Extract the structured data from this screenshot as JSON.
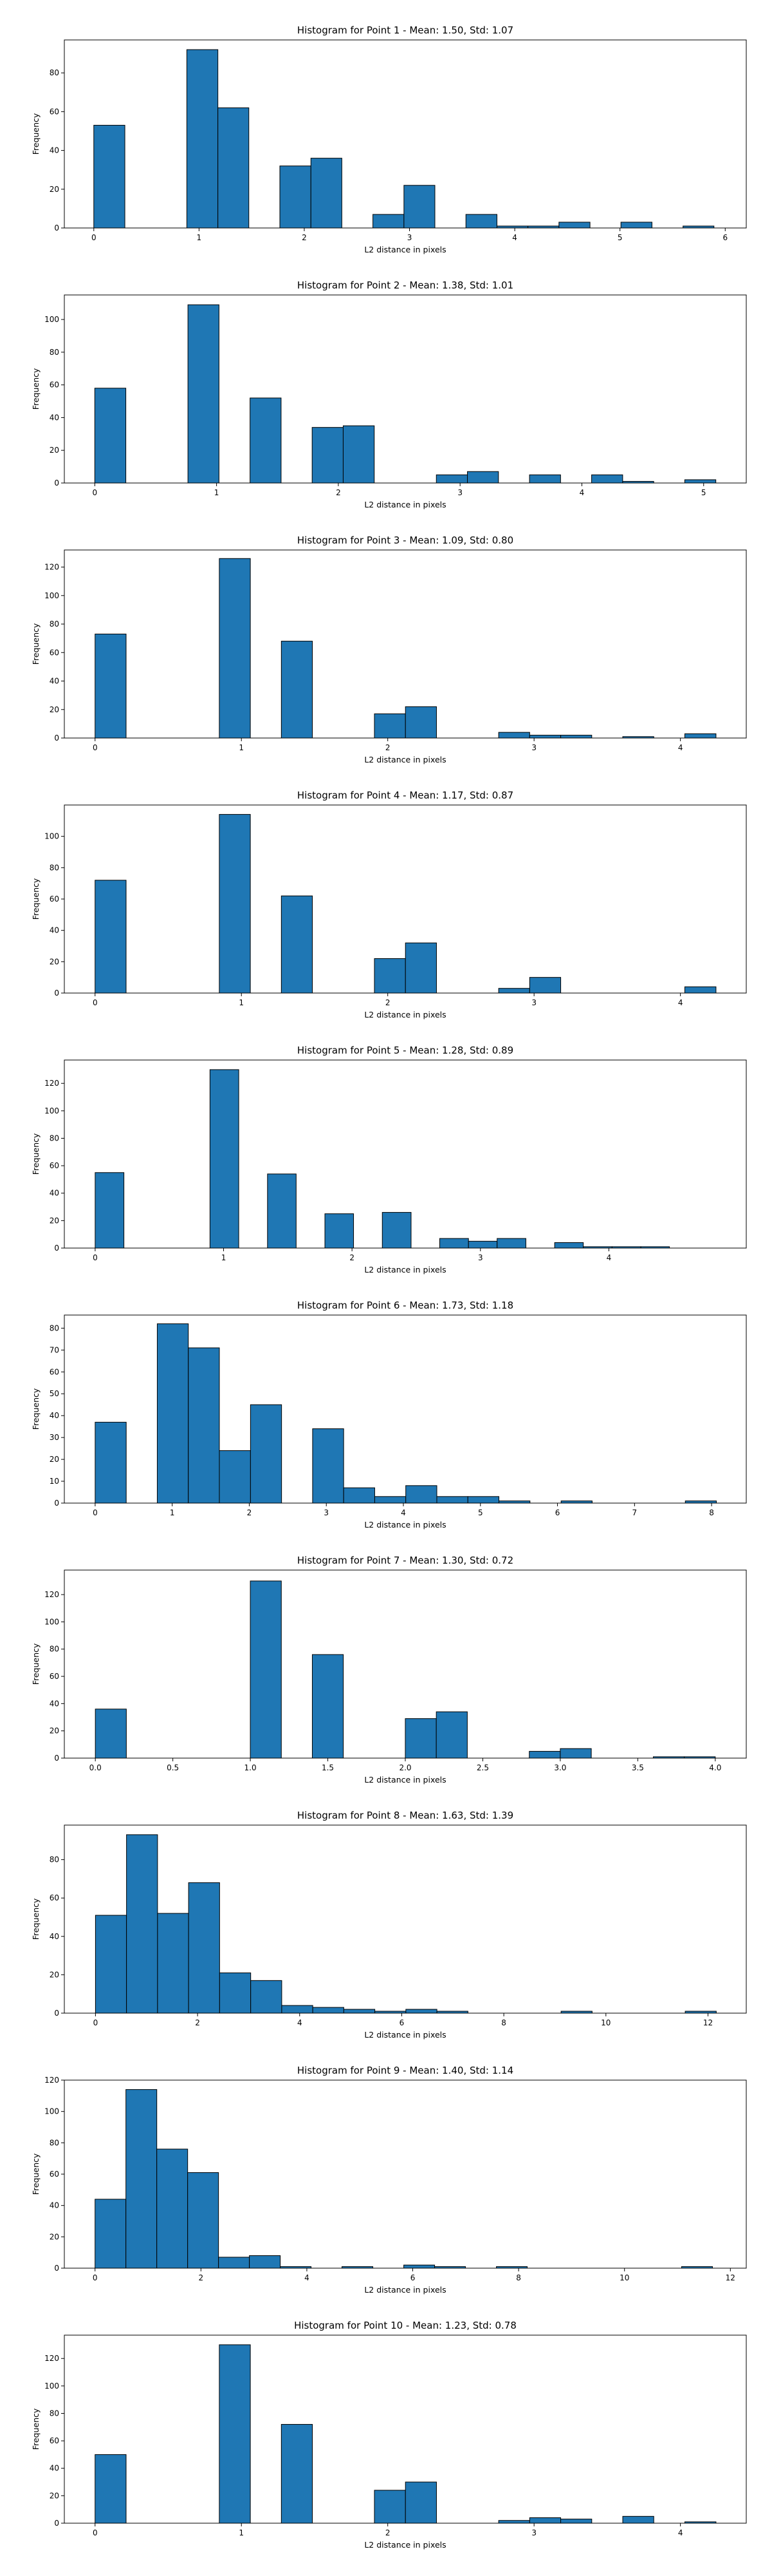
{
  "colors": {
    "bar_fill": "#1f77b4",
    "bar_edge": "#000000",
    "axis": "#000000"
  },
  "chart_data": [
    {
      "type": "bar",
      "title": "Histogram for Point 1 - Mean: 1.50, Std: 1.07",
      "xlabel": "L2 distance in pixels",
      "ylabel": "Frequency",
      "grid": false,
      "xlim": [
        -0.28,
        6.2
      ],
      "ylim": [
        0,
        97
      ],
      "xticks": [
        0,
        1,
        2,
        3,
        4,
        5,
        6
      ],
      "yticks": [
        0,
        20,
        40,
        60,
        80
      ],
      "bin_edges": [
        0.0,
        0.295,
        0.589,
        0.884,
        1.179,
        1.473,
        1.768,
        2.063,
        2.357,
        2.652,
        2.947,
        3.241,
        3.536,
        3.831,
        4.125,
        4.42,
        4.715,
        5.009,
        5.304,
        5.599,
        5.893
      ],
      "values": [
        53,
        0,
        0,
        92,
        62,
        0,
        32,
        36,
        0,
        7,
        22,
        0,
        7,
        1,
        1,
        3,
        0,
        3,
        0,
        1
      ]
    },
    {
      "type": "bar",
      "title": "Histogram for Point 2 - Mean: 1.38, Std: 1.01",
      "xlabel": "L2 distance in pixels",
      "ylabel": "Frequency",
      "grid": false,
      "xlim": [
        -0.25,
        5.35
      ],
      "ylim": [
        0,
        115
      ],
      "xticks": [
        0,
        1,
        2,
        3,
        4,
        5
      ],
      "yticks": [
        0,
        20,
        40,
        60,
        80,
        100
      ],
      "bin_edges": [
        0.0,
        0.255,
        0.51,
        0.765,
        1.02,
        1.275,
        1.53,
        1.785,
        2.04,
        2.295,
        2.55,
        2.805,
        3.06,
        3.315,
        3.57,
        3.825,
        4.08,
        4.335,
        4.59,
        4.845,
        5.1
      ],
      "values": [
        58,
        0,
        0,
        109,
        0,
        52,
        0,
        34,
        35,
        0,
        0,
        5,
        7,
        0,
        5,
        0,
        5,
        1,
        0,
        2
      ]
    },
    {
      "type": "bar",
      "title": "Histogram for Point 3 - Mean: 1.09, Std: 0.80",
      "xlabel": "L2 distance in pixels",
      "ylabel": "Frequency",
      "grid": false,
      "xlim": [
        -0.21,
        4.45
      ],
      "ylim": [
        0,
        132
      ],
      "xticks": [
        0,
        1,
        2,
        3,
        4
      ],
      "yticks": [
        0,
        20,
        40,
        60,
        80,
        100,
        120
      ],
      "bin_edges": [
        0.0,
        0.212,
        0.424,
        0.636,
        0.849,
        1.061,
        1.273,
        1.485,
        1.697,
        1.909,
        2.121,
        2.333,
        2.546,
        2.758,
        2.97,
        3.182,
        3.394,
        3.606,
        3.818,
        4.03,
        4.243
      ],
      "values": [
        73,
        0,
        0,
        0,
        126,
        0,
        68,
        0,
        0,
        17,
        22,
        0,
        0,
        4,
        2,
        2,
        0,
        1,
        0,
        3
      ]
    },
    {
      "type": "bar",
      "title": "Histogram for Point 4 - Mean: 1.17, Std: 0.87",
      "xlabel": "L2 distance in pixels",
      "ylabel": "Frequency",
      "grid": false,
      "xlim": [
        -0.21,
        4.45
      ],
      "ylim": [
        0,
        120
      ],
      "xticks": [
        0,
        1,
        2,
        3,
        4
      ],
      "yticks": [
        0,
        20,
        40,
        60,
        80,
        100
      ],
      "bin_edges": [
        0.0,
        0.212,
        0.424,
        0.636,
        0.849,
        1.061,
        1.273,
        1.485,
        1.697,
        1.909,
        2.121,
        2.333,
        2.546,
        2.758,
        2.97,
        3.182,
        3.394,
        3.606,
        3.818,
        4.03,
        4.243
      ],
      "values": [
        72,
        0,
        0,
        0,
        114,
        0,
        62,
        0,
        0,
        22,
        32,
        0,
        0,
        3,
        10,
        0,
        0,
        0,
        0,
        4
      ]
    },
    {
      "type": "bar",
      "title": "Histogram for Point 5 - Mean: 1.28, Std: 0.89",
      "xlabel": "L2 distance in pixels",
      "ylabel": "Frequency",
      "grid": false,
      "xlim": [
        -0.24,
        5.07
      ],
      "ylim": [
        0,
        137
      ],
      "xticks": [
        0,
        1,
        2,
        3,
        4
      ],
      "yticks": [
        0,
        20,
        40,
        60,
        80,
        100,
        120
      ],
      "bin_edges": [
        0.0,
        0.224,
        0.447,
        0.671,
        0.894,
        1.118,
        1.342,
        1.565,
        1.789,
        2.012,
        2.236,
        2.46,
        2.683,
        2.907,
        3.13,
        3.354,
        3.578,
        3.801,
        4.025,
        4.249,
        4.472
      ],
      "values": [
        55,
        0,
        0,
        0,
        130,
        0,
        54,
        0,
        25,
        0,
        26,
        0,
        7,
        5,
        7,
        0,
        4,
        1,
        1,
        1
      ]
    },
    {
      "type": "bar",
      "title": "Histogram for Point 6 - Mean: 1.73, Std: 1.18",
      "xlabel": "L2 distance in pixels",
      "ylabel": "Frequency",
      "grid": false,
      "xlim": [
        -0.4,
        8.45
      ],
      "ylim": [
        0,
        86
      ],
      "xticks": [
        0,
        1,
        2,
        3,
        4,
        5,
        6,
        7,
        8
      ],
      "yticks": [
        0,
        10,
        20,
        30,
        40,
        50,
        60,
        70,
        80
      ],
      "bin_edges": [
        0.0,
        0.403,
        0.806,
        1.209,
        1.612,
        2.016,
        2.419,
        2.822,
        3.225,
        3.628,
        4.031,
        4.434,
        4.837,
        5.24,
        5.643,
        6.047,
        6.45,
        6.853,
        7.256,
        7.659,
        8.062
      ],
      "values": [
        37,
        0,
        82,
        71,
        24,
        45,
        0,
        34,
        7,
        3,
        8,
        3,
        3,
        1,
        0,
        1,
        0,
        0,
        0,
        1
      ]
    },
    {
      "type": "bar",
      "title": "Histogram for Point 7 - Mean: 1.30, Std: 0.72",
      "xlabel": "L2 distance in pixels",
      "ylabel": "Frequency",
      "grid": false,
      "xlim": [
        -0.2,
        4.2
      ],
      "ylim": [
        0,
        138
      ],
      "xticks": [
        0.0,
        0.5,
        1.0,
        1.5,
        2.0,
        2.5,
        3.0,
        3.5,
        4.0
      ],
      "xtick_labels": [
        "0.0",
        "0.5",
        "1.0",
        "1.5",
        "2.0",
        "2.5",
        "3.0",
        "3.5",
        "4.0"
      ],
      "yticks": [
        0,
        20,
        40,
        60,
        80,
        100,
        120
      ],
      "bin_edges": [
        0.0,
        0.2,
        0.4,
        0.6,
        0.8,
        1.0,
        1.2,
        1.4,
        1.6,
        1.8,
        2.0,
        2.2,
        2.4,
        2.6,
        2.8,
        3.0,
        3.2,
        3.4,
        3.6,
        3.8,
        4.0
      ],
      "values": [
        36,
        0,
        0,
        0,
        0,
        130,
        0,
        76,
        0,
        0,
        29,
        34,
        0,
        0,
        5,
        7,
        0,
        0,
        1,
        1
      ]
    },
    {
      "type": "bar",
      "title": "Histogram for Point 8 - Mean: 1.63, Std: 1.39",
      "xlabel": "L2 distance in pixels",
      "ylabel": "Frequency",
      "grid": false,
      "xlim": [
        -0.61,
        12.75
      ],
      "ylim": [
        0,
        98
      ],
      "xticks": [
        0,
        2,
        4,
        6,
        8,
        10,
        12
      ],
      "yticks": [
        0,
        20,
        40,
        60,
        80
      ],
      "bin_edges": [
        0.0,
        0.608,
        1.216,
        1.824,
        2.432,
        3.041,
        3.649,
        4.257,
        4.865,
        5.473,
        6.081,
        6.689,
        7.297,
        7.905,
        8.514,
        9.122,
        9.73,
        10.338,
        10.946,
        11.554,
        12.162
      ],
      "values": [
        51,
        93,
        52,
        68,
        21,
        17,
        4,
        3,
        2,
        1,
        2,
        1,
        0,
        0,
        0,
        1,
        0,
        0,
        0,
        1
      ]
    },
    {
      "type": "bar",
      "title": "Histogram for Point 9 - Mean: 1.40, Std: 1.14",
      "xlabel": "L2 distance in pixels",
      "ylabel": "Frequency",
      "grid": false,
      "xlim": [
        -0.58,
        12.3
      ],
      "ylim": [
        0,
        120
      ],
      "xticks": [
        0,
        2,
        4,
        6,
        8,
        10,
        12
      ],
      "yticks": [
        0,
        20,
        40,
        60,
        80,
        100,
        120
      ],
      "bin_edges": [
        0.0,
        0.583,
        1.166,
        1.749,
        2.332,
        2.915,
        3.498,
        4.081,
        4.664,
        5.247,
        5.831,
        6.414,
        6.997,
        7.58,
        8.163,
        8.746,
        9.329,
        9.912,
        10.495,
        11.078,
        11.662
      ],
      "values": [
        44,
        114,
        76,
        61,
        7,
        8,
        1,
        0,
        1,
        0,
        2,
        1,
        0,
        1,
        0,
        0,
        0,
        0,
        0,
        1
      ]
    },
    {
      "type": "bar",
      "title": "Histogram for Point 10 - Mean: 1.23, Std: 0.78",
      "xlabel": "L2 distance in pixels",
      "ylabel": "Frequency",
      "grid": false,
      "xlim": [
        -0.21,
        4.45
      ],
      "ylim": [
        0,
        137
      ],
      "xticks": [
        0,
        1,
        2,
        3,
        4
      ],
      "yticks": [
        0,
        20,
        40,
        60,
        80,
        100,
        120
      ],
      "bin_edges": [
        0.0,
        0.212,
        0.424,
        0.636,
        0.849,
        1.061,
        1.273,
        1.485,
        1.697,
        1.909,
        2.121,
        2.333,
        2.546,
        2.758,
        2.97,
        3.182,
        3.394,
        3.606,
        3.818,
        4.03,
        4.243
      ],
      "values": [
        50,
        0,
        0,
        0,
        130,
        0,
        72,
        0,
        0,
        24,
        30,
        0,
        0,
        2,
        4,
        3,
        0,
        5,
        0,
        1
      ]
    }
  ]
}
